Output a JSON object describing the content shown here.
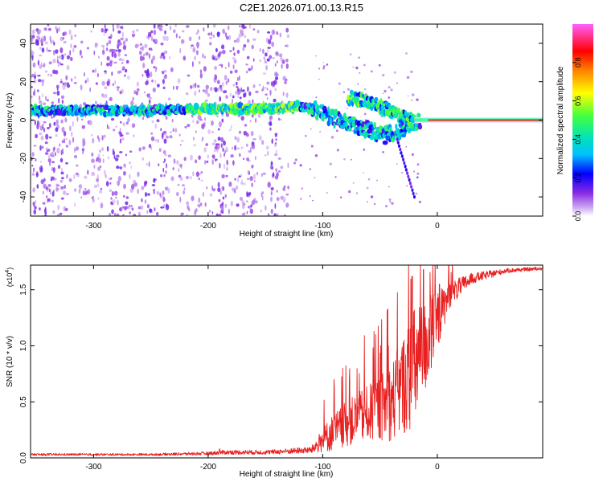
{
  "title": "C2E1.2026.071.00.13.R15",
  "chart_data": [
    {
      "type": "heatmap",
      "name": "spectrogram",
      "xlabel": "Height of straight line (km)",
      "ylabel": "Frequency (Hz)",
      "xlim": [
        -355,
        92
      ],
      "ylim": [
        -50,
        50
      ],
      "xticks": [
        -300,
        -200,
        -100,
        0
      ],
      "xtick_labels": [
        "-300",
        "-200",
        "-100",
        "0"
      ],
      "yticks": [
        -40,
        -20,
        0,
        20,
        40
      ],
      "ytick_labels": [
        "-40",
        "-20",
        "0",
        "20",
        "40"
      ],
      "colorbar": {
        "label": "Normalized spectral amplitude",
        "range": [
          0,
          1
        ],
        "ticks": [
          0.0,
          0.2,
          0.4,
          0.6,
          0.8
        ],
        "tick_labels": [
          "0.0",
          "0.2",
          "0.4",
          "0.6",
          "0.8"
        ],
        "colors": [
          "#ffffff",
          "#c8a0f0",
          "#8a2be2",
          "#0000ff",
          "#00c0ff",
          "#00e0c0",
          "#40ff40",
          "#ffff00",
          "#ff8000",
          "#ff0000",
          "#ff60ff"
        ]
      },
      "main_trace": [
        {
          "x": -355,
          "y": 5
        },
        {
          "x": -300,
          "y": 5
        },
        {
          "x": -250,
          "y": 5
        },
        {
          "x": -200,
          "y": 6
        },
        {
          "x": -150,
          "y": 6
        },
        {
          "x": -120,
          "y": 7
        },
        {
          "x": -105,
          "y": 5
        },
        {
          "x": -95,
          "y": 2
        },
        {
          "x": -85,
          "y": 0
        },
        {
          "x": -75,
          "y": -2
        },
        {
          "x": -60,
          "y": -5
        },
        {
          "x": -45,
          "y": -8
        },
        {
          "x": -30,
          "y": -5
        },
        {
          "x": -20,
          "y": -1
        },
        {
          "x": -10,
          "y": 0
        },
        {
          "x": 0,
          "y": 1
        },
        {
          "x": 50,
          "y": 0
        },
        {
          "x": 92,
          "y": 0
        }
      ],
      "secondary_trace": [
        {
          "x": -78,
          "y": 12
        },
        {
          "x": -65,
          "y": 10
        },
        {
          "x": -55,
          "y": 8
        },
        {
          "x": -45,
          "y": 6
        },
        {
          "x": -35,
          "y": 3
        },
        {
          "x": -25,
          "y": 0
        }
      ]
    },
    {
      "type": "line",
      "name": "snr",
      "xlabel": "Height of straight line (km)",
      "ylabel": "SNR (10 * v/v)",
      "scale_label": "(x10",
      "scale_exponent": "4",
      "xlim": [
        -355,
        92
      ],
      "ylim": [
        0,
        1.72
      ],
      "xticks": [
        -300,
        -200,
        -100,
        0
      ],
      "xtick_labels": [
        "-300",
        "-200",
        "-100",
        "0"
      ],
      "yticks": [
        0.0,
        0.5,
        1.0,
        1.5
      ],
      "ytick_labels": [
        "0.0",
        "0.5",
        "1.0",
        "1.5"
      ],
      "color": "#e82020",
      "envelope": [
        {
          "x": -355,
          "base": 0.03,
          "noise": 0.01
        },
        {
          "x": -250,
          "base": 0.03,
          "noise": 0.01
        },
        {
          "x": -200,
          "base": 0.04,
          "noise": 0.015
        },
        {
          "x": -185,
          "base": 0.05,
          "noise": 0.02
        },
        {
          "x": -150,
          "base": 0.05,
          "noise": 0.02
        },
        {
          "x": -110,
          "base": 0.07,
          "noise": 0.03
        },
        {
          "x": -95,
          "base": 0.2,
          "noise": 0.15
        },
        {
          "x": -80,
          "base": 0.3,
          "noise": 0.2
        },
        {
          "x": -60,
          "base": 0.4,
          "noise": 0.25
        },
        {
          "x": -40,
          "base": 0.5,
          "noise": 0.35
        },
        {
          "x": -20,
          "base": 0.8,
          "noise": 0.55
        },
        {
          "x": -5,
          "base": 1.1,
          "noise": 0.35
        },
        {
          "x": 10,
          "base": 1.45,
          "noise": 0.12
        },
        {
          "x": 30,
          "base": 1.6,
          "noise": 0.05
        },
        {
          "x": 60,
          "base": 1.67,
          "noise": 0.02
        },
        {
          "x": 92,
          "base": 1.69,
          "noise": 0.015
        }
      ],
      "peaks": [
        {
          "x": -22,
          "y": 1.62
        },
        {
          "x": -12,
          "y": 1.68
        },
        {
          "x": -6,
          "y": 1.45
        },
        {
          "x": 2,
          "y": 1.55
        },
        {
          "x": 10,
          "y": 1.72
        },
        {
          "x": -190,
          "y": 0.08
        }
      ]
    }
  ]
}
